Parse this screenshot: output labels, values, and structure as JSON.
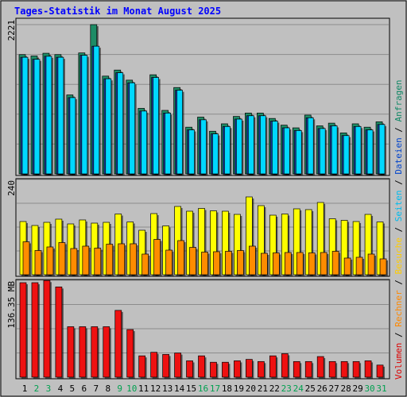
{
  "chart_data": {
    "type": "bar",
    "title": "Tages-Statistik im Monat August 2025",
    "categories": [
      "1",
      "2",
      "3",
      "4",
      "5",
      "6",
      "7",
      "8",
      "9",
      "10",
      "11",
      "12",
      "13",
      "14",
      "15",
      "16",
      "17",
      "18",
      "19",
      "20",
      "21",
      "22",
      "23",
      "24",
      "25",
      "26",
      "27",
      "28",
      "29",
      "30",
      "31"
    ],
    "weekend_days": [
      "2",
      "3",
      "9",
      "10",
      "16",
      "17",
      "23",
      "24",
      "30",
      "31"
    ],
    "right_legend": [
      {
        "text": "Volumen",
        "color": "#dd0000"
      },
      {
        "text": "Rechner",
        "color": "#ff8800"
      },
      {
        "text": "Besuche",
        "color": "#ffcc00"
      },
      {
        "text": "Seiten",
        "color": "#00bbee"
      },
      {
        "text": "Dateien",
        "color": "#0044cc"
      },
      {
        "text": "Anfragen",
        "color": "#118866"
      }
    ],
    "panels": [
      {
        "id": "top",
        "max_label": "2221",
        "ymax": 2221,
        "series": [
          {
            "name": "Anfragen",
            "color": "#1e8c66",
            "values": [
              1775,
              1755,
              1795,
              1775,
              1175,
              1800,
              2221,
              1455,
              1545,
              1395,
              975,
              1475,
              945,
              1285,
              695,
              845,
              635,
              745,
              855,
              905,
              905,
              825,
              725,
              685,
              875,
              715,
              755,
              610,
              745,
              695,
              775
            ]
          },
          {
            "name": "Dateien",
            "color": "#1c3fa8",
            "values": [
              1735,
              1705,
              1750,
              1735,
              1135,
              1765,
              1900,
              1415,
              1505,
              1355,
              935,
              1435,
              905,
              1245,
              655,
              805,
              595,
              705,
              815,
              865,
              865,
              785,
              685,
              645,
              835,
              675,
              715,
              570,
              705,
              655,
              735
            ]
          },
          {
            "name": "Seiten",
            "color": "#00d8ff",
            "values": [
              1735,
              1705,
              1750,
              1735,
              1135,
              1765,
              1900,
              1415,
              1505,
              1355,
              935,
              1435,
              905,
              1245,
              655,
              805,
              595,
              705,
              815,
              865,
              865,
              785,
              685,
              645,
              835,
              675,
              715,
              570,
              705,
              655,
              735
            ]
          }
        ]
      },
      {
        "id": "mid",
        "max_label": "240",
        "ymax": 240,
        "series": [
          {
            "name": "Besuche",
            "color": "#ffff00",
            "values": [
              134,
              124,
              132,
              140,
              128,
              138,
              130,
              132,
              153,
              133,
              112,
              154,
              123,
              172,
              160,
              167,
              161,
              160,
              152,
              196,
              174,
              150,
              153,
              166,
              164,
              182,
              141,
              137,
              134,
              152,
              133
            ]
          },
          {
            "name": "Rechner",
            "color": "#ff8c00",
            "values": [
              83,
              61,
              70,
              81,
              66,
              72,
              67,
              77,
              78,
              78,
              52,
              89,
              62,
              86,
              69,
              57,
              58,
              59,
              61,
              72,
              54,
              55,
              56,
              56,
              55,
              56,
              59,
              42,
              44,
              52,
              40
            ]
          }
        ]
      },
      {
        "id": "bot",
        "max_label": "136.35 MB",
        "ymax": 136.35,
        "series": [
          {
            "name": "Volumen",
            "color": "#ee1111",
            "values": [
              133,
              133,
              136,
              127,
              71,
              71,
              71,
              71,
              94,
              67,
              30,
              35,
              32,
              34,
              23,
              30,
              21,
              21,
              23,
              25,
              22,
              30,
              33,
              22,
              22,
              29,
              22,
              22,
              22,
              23,
              17
            ]
          }
        ]
      }
    ]
  }
}
